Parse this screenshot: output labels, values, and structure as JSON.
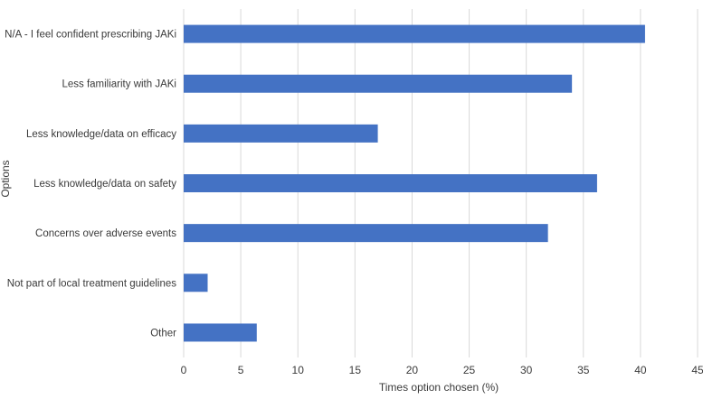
{
  "chart_data": {
    "type": "bar",
    "orientation": "horizontal",
    "categories": [
      "N/A - I feel confident prescribing JAKi",
      "Less familiarity with JAKi",
      "Less knowledge/data on efficacy",
      "Less knowledge/data on safety",
      "Concerns over adverse events",
      "Not part of local treatment guidelines",
      "Other"
    ],
    "values": [
      40.4,
      34.0,
      17.0,
      36.2,
      31.9,
      2.1,
      6.4
    ],
    "xlabel": "Times option chosen (%)",
    "ylabel": "Options",
    "xlim": [
      0,
      45
    ],
    "xticks": [
      0,
      5,
      10,
      15,
      20,
      25,
      30,
      35,
      40,
      45
    ],
    "grid": "vertical",
    "bar_color": "#4472C4",
    "legend": "none"
  }
}
